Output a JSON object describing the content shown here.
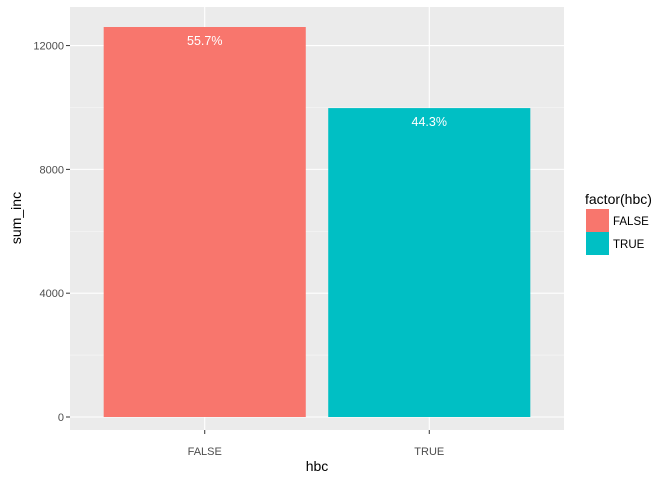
{
  "chart_data": {
    "type": "bar",
    "categories": [
      "FALSE",
      "TRUE"
    ],
    "values": [
      12600,
      9980
    ],
    "data_labels": [
      "55.7%",
      "44.3%"
    ],
    "colors": [
      "#F8766D",
      "#00BFC4"
    ],
    "xlabel": "hbc",
    "ylabel": "sum_inc",
    "ylim": [
      0,
      12600
    ],
    "yticks": [
      0,
      4000,
      8000,
      12000
    ],
    "yticklabels": [
      "0",
      "4000",
      "8000",
      "12000"
    ],
    "grid": true,
    "panel_background": "#EBEBEB",
    "legend": {
      "title": "factor(hbc)",
      "position": "right",
      "entries": [
        {
          "label": "FALSE",
          "color": "#F8766D"
        },
        {
          "label": "TRUE",
          "color": "#00BFC4"
        }
      ]
    }
  }
}
